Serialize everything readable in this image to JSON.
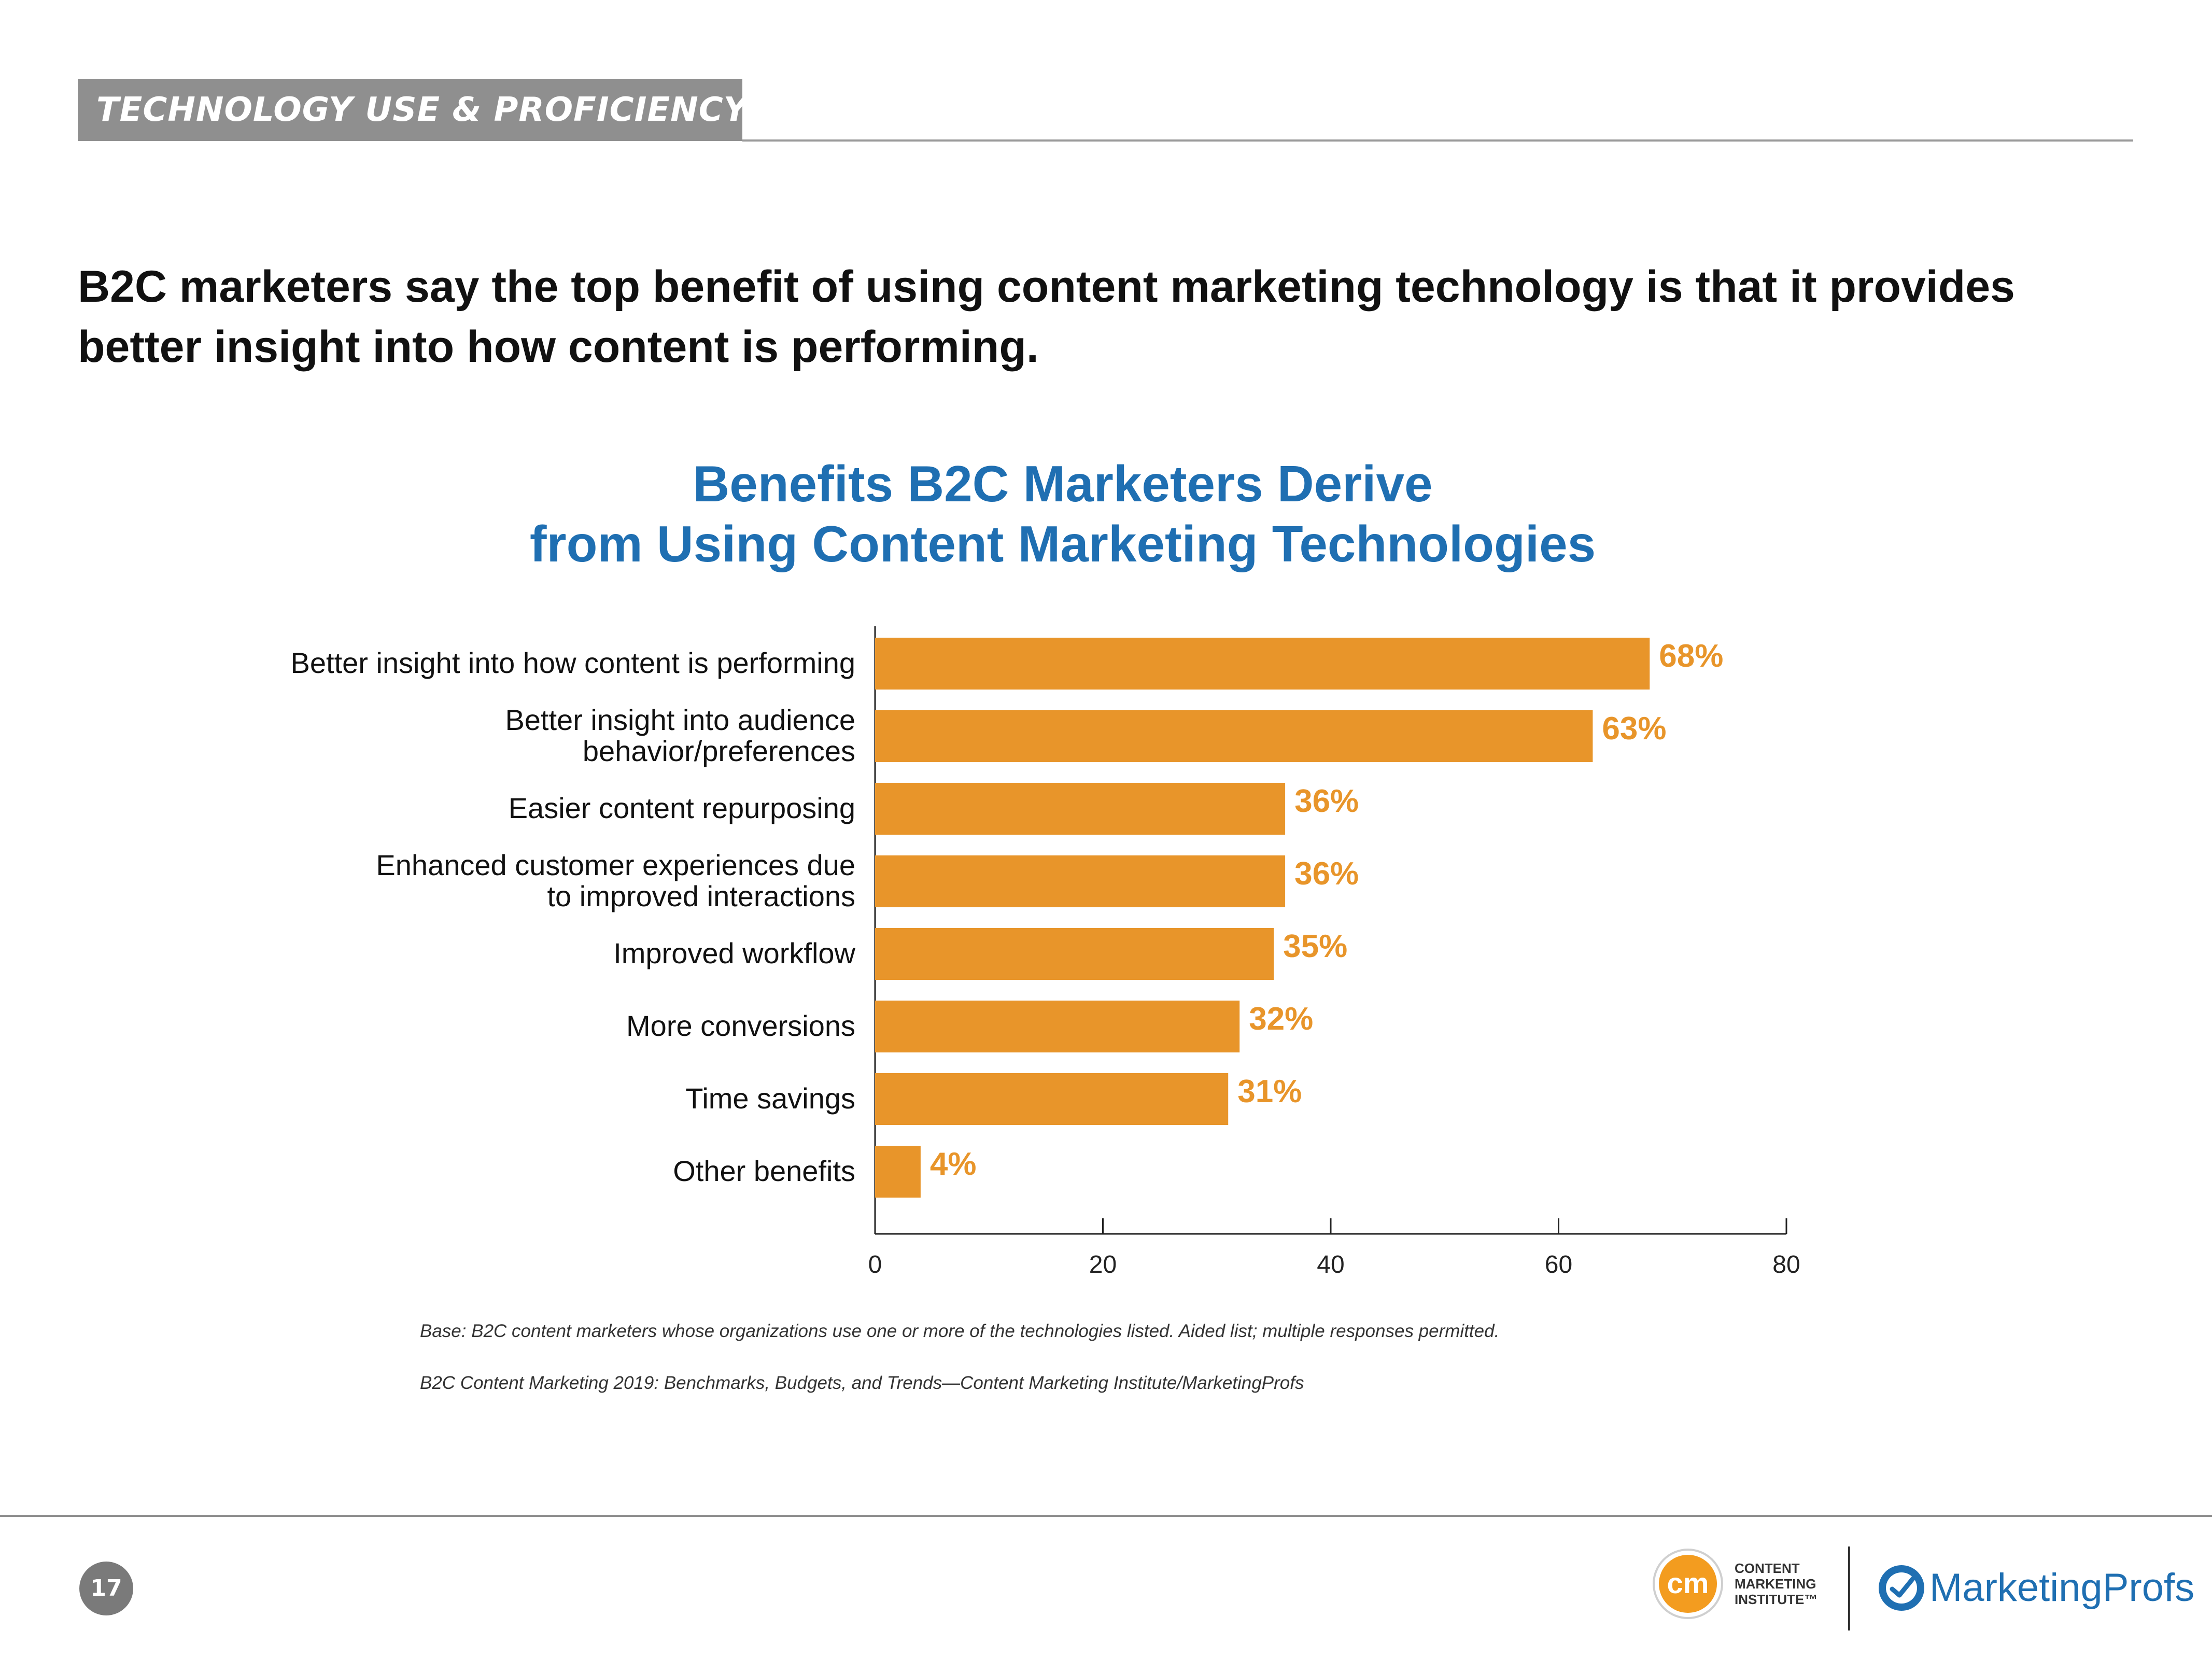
{
  "section": {
    "title": "TECHNOLOGY USE & PROFICIENCY"
  },
  "headline": {
    "line1": "B2C marketers say the top benefit of using content marketing technology is that it provides",
    "line2": "better insight into how content is performing."
  },
  "chart_data": {
    "type": "bar",
    "orientation": "horizontal",
    "title": [
      "Benefits B2C Marketers Derive",
      "from Using Content Marketing Technologies"
    ],
    "categories": [
      [
        "Better insight into how content is performing"
      ],
      [
        "Better insight into audience",
        "behavior/preferences"
      ],
      [
        "Easier content repurposing"
      ],
      [
        "Enhanced customer experiences due",
        "to improved interactions"
      ],
      [
        "Improved workflow"
      ],
      [
        "More conversions"
      ],
      [
        "Time savings"
      ],
      [
        "Other benefits"
      ]
    ],
    "values": [
      68,
      63,
      36,
      36,
      35,
      32,
      31,
      4
    ],
    "value_labels": [
      "68%",
      "63%",
      "36%",
      "36%",
      "35%",
      "32%",
      "31%",
      "4%"
    ],
    "xlim": [
      0,
      80
    ],
    "xticks": [
      "0",
      "20",
      "40",
      "60",
      "80"
    ],
    "xlabel": "",
    "ylabel": "",
    "bar_color": "#e8952a",
    "label_color": "#e8952a",
    "grid": false
  },
  "footnotes": {
    "base": "Base: B2C content marketers whose organizations use one or more of the technologies listed. Aided list; multiple responses permitted.",
    "source": "B2C Content Marketing 2019: Benchmarks, Budgets, and Trends—Content Marketing Institute/MarketingProfs"
  },
  "footer": {
    "page_number": "17",
    "cmi_logo_text": "cm",
    "cmi_lines": [
      "CONTENT",
      "MARKETING",
      "INSTITUTE™"
    ],
    "mp_name": "MarketingProfs"
  },
  "colors": {
    "accent_blue": "#1f6fb2",
    "bar_orange": "#e8952a",
    "cmi_orange": "#f39c1f",
    "tab_gray": "#8f8f8f"
  }
}
